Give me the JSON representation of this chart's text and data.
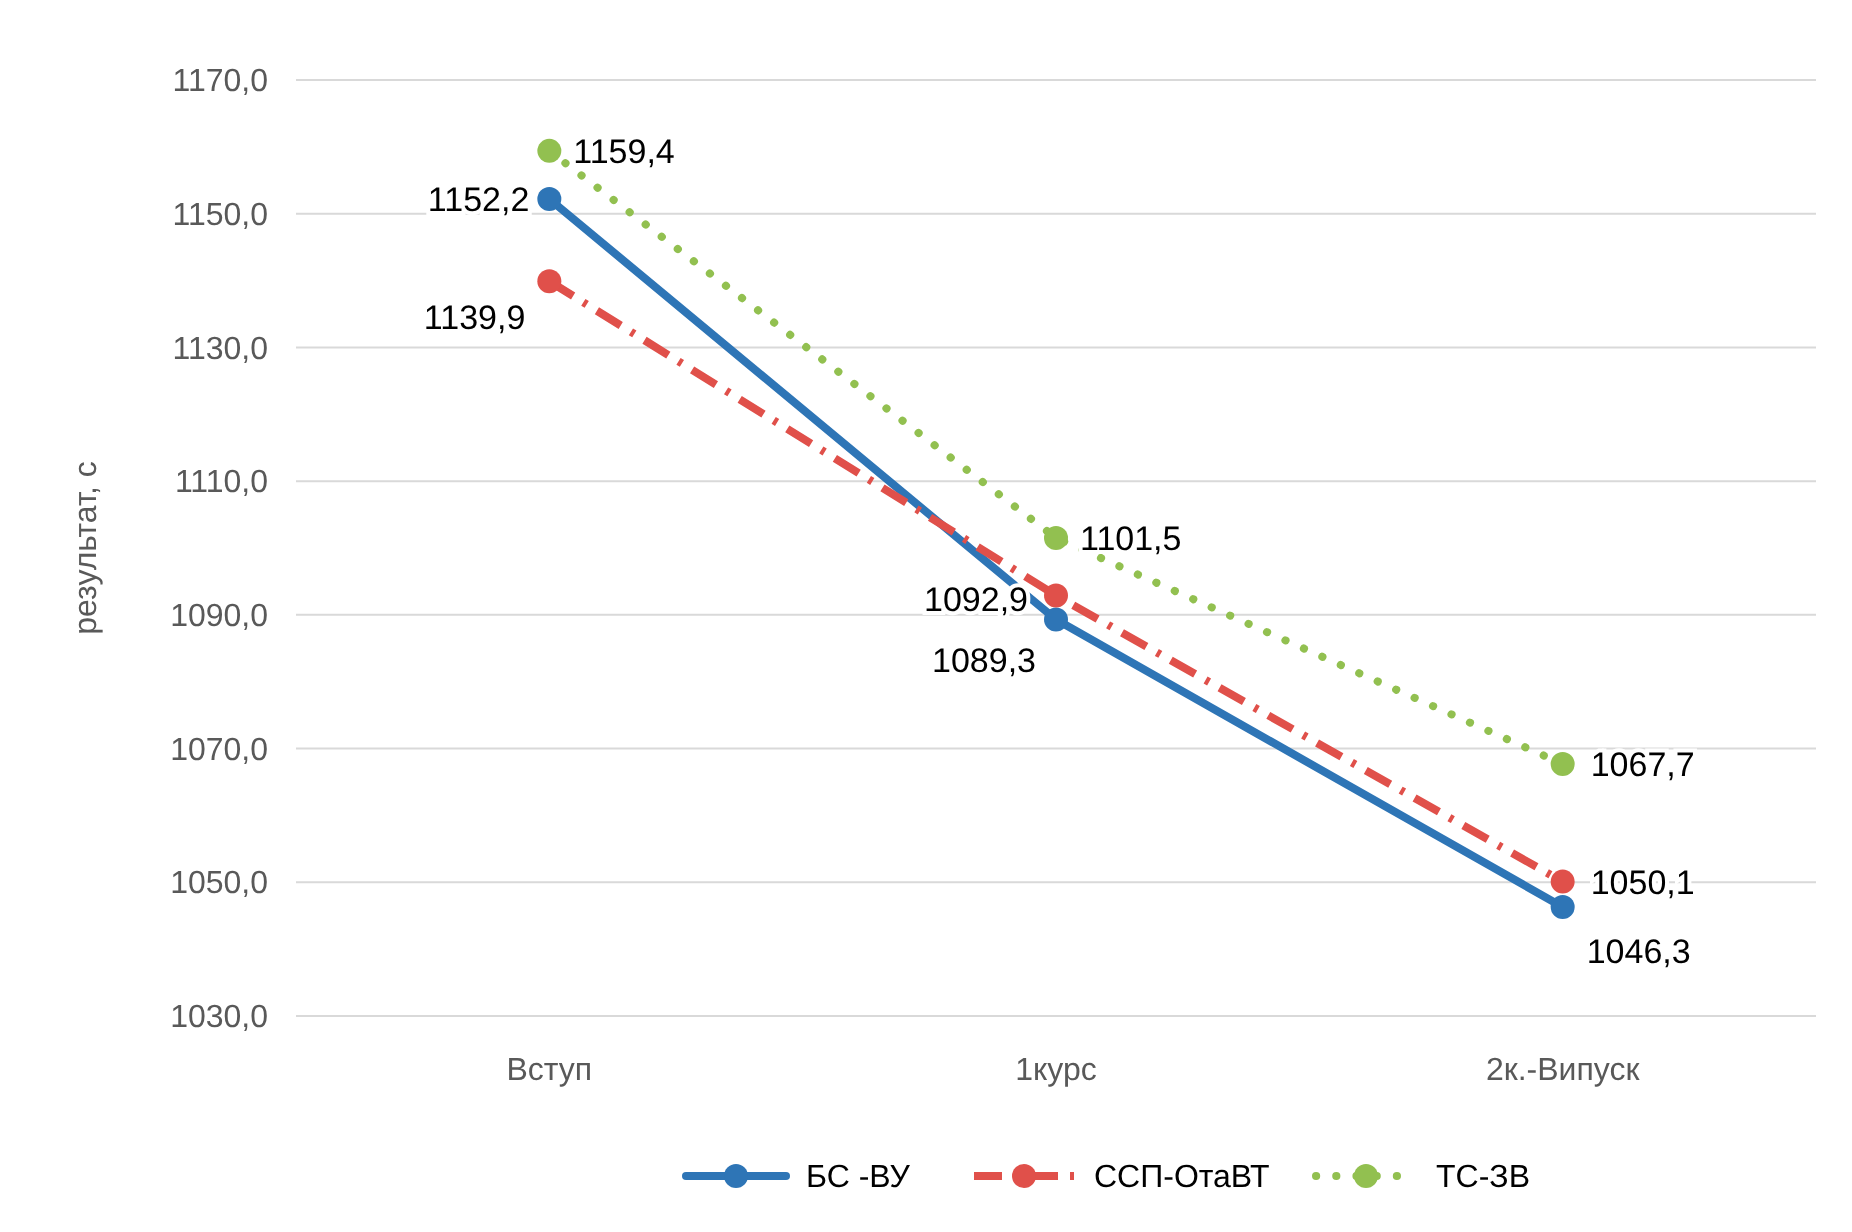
{
  "chart_data": {
    "type": "line",
    "ylabel": "результат, с",
    "categories": [
      "Вступ",
      "1курс",
      "2к.-Випуск"
    ],
    "ylim": [
      1030,
      1170
    ],
    "yticks": [
      {
        "value": 1030,
        "label": "1030,0"
      },
      {
        "value": 1050,
        "label": "1050,0"
      },
      {
        "value": 1070,
        "label": "1070,0"
      },
      {
        "value": 1090,
        "label": "1090,0"
      },
      {
        "value": 1110,
        "label": "1110,0"
      },
      {
        "value": 1130,
        "label": "1130,0"
      },
      {
        "value": 1150,
        "label": "1150,0"
      },
      {
        "value": 1170,
        "label": "1170,0"
      }
    ],
    "grid": "y",
    "legend": "bottom",
    "marker": "circle",
    "series": [
      {
        "name": "БС -ВУ",
        "color": "#2e75b6",
        "line_style": "solid",
        "values": [
          1152.2,
          1089.3,
          1046.3
        ],
        "value_labels": [
          "1152,2",
          "1089,3",
          "1046,3"
        ]
      },
      {
        "name": "ССП-ОтаВТ",
        "color": "#e0504a",
        "line_style": "dashdot",
        "values": [
          1139.9,
          1092.9,
          1050.1
        ],
        "value_labels": [
          "1139,9",
          "1092,9",
          "1050,1"
        ]
      },
      {
        "name": "ТС-ЗВ",
        "color": "#92c050",
        "line_style": "dotted",
        "values": [
          1159.4,
          1101.5,
          1067.7
        ],
        "value_labels": [
          "1159,4",
          "1101,5",
          "1067,7"
        ]
      }
    ]
  }
}
